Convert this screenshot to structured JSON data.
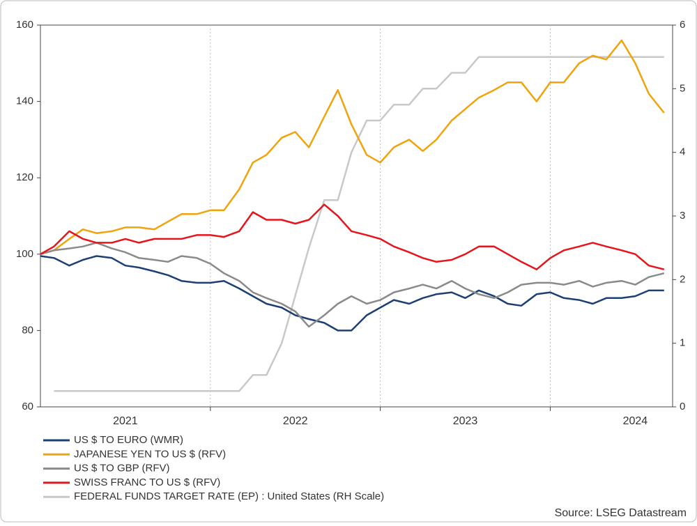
{
  "chart_data": {
    "type": "line",
    "x": [
      2021,
      2021.08,
      2021.17,
      2021.25,
      2021.33,
      2021.42,
      2021.5,
      2021.58,
      2021.67,
      2021.75,
      2021.83,
      2021.92,
      2022,
      2022.08,
      2022.17,
      2022.25,
      2022.33,
      2022.42,
      2022.5,
      2022.58,
      2022.67,
      2022.75,
      2022.83,
      2022.92,
      2023,
      2023.08,
      2023.17,
      2023.25,
      2023.33,
      2023.42,
      2023.5,
      2023.58,
      2023.67,
      2023.75,
      2023.83,
      2023.92,
      2024,
      2024.08,
      2024.17,
      2024.25,
      2024.33,
      2024.42,
      2024.5,
      2024.58,
      2024.67
    ],
    "xlim": [
      2021,
      2024.72
    ],
    "xticks": [
      2022,
      2023,
      2024
    ],
    "x_labels": [
      2021,
      2022,
      2023,
      2024
    ],
    "ylim": [
      60,
      160
    ],
    "yticks": [
      60,
      80,
      100,
      120,
      140,
      160
    ],
    "y2lim": [
      0,
      6
    ],
    "y2ticks": [
      0,
      1,
      2,
      3,
      4,
      5,
      6
    ],
    "grid": "x",
    "series": [
      {
        "name": "US $ TO EURO (WMR)",
        "color": "#1c3f74",
        "values": [
          99.5,
          99,
          97,
          98.5,
          99.5,
          99,
          97,
          96.5,
          95.5,
          94.5,
          93,
          92.5,
          92.5,
          93,
          91,
          89,
          87,
          86,
          84,
          83,
          82,
          80,
          80,
          84,
          86,
          88,
          87,
          88.5,
          89.5,
          90,
          88.5,
          90.5,
          89,
          87,
          86.5,
          89.5,
          90,
          88.5,
          88,
          87,
          88.5,
          88.5,
          89,
          90.5,
          90.5
        ]
      },
      {
        "name": "JAPANESE YEN TO US $ (RFV)",
        "color": "#f0a30a",
        "values": [
          100,
          101,
          104,
          106.5,
          105.5,
          106,
          107,
          107,
          106.5,
          108.5,
          110.5,
          110.5,
          111.5,
          111.5,
          117,
          124,
          126,
          130.5,
          132,
          128,
          136,
          143,
          134,
          126,
          124,
          128,
          130,
          127,
          130,
          135,
          138,
          141,
          143,
          145,
          145,
          140,
          145,
          145,
          150,
          152,
          151,
          156,
          150,
          142,
          137
        ]
      },
      {
        "name": "US $ TO GBP (RFV)",
        "color": "#8a8a8a",
        "values": [
          100,
          101,
          101.5,
          102,
          103,
          101.5,
          100.5,
          99,
          98.5,
          98,
          99.5,
          99,
          97.5,
          95,
          93,
          90,
          88.5,
          87,
          85,
          81,
          84,
          87,
          89,
          87,
          88,
          90,
          91,
          92,
          91,
          93,
          91,
          89.5,
          88.5,
          90,
          92,
          92.5,
          92.5,
          92,
          93,
          91.5,
          92.5,
          93,
          92,
          94,
          95
        ]
      },
      {
        "name": "SWISS FRANC TO US $ (RFV)",
        "color": "#e8141c",
        "values": [
          100,
          102,
          106,
          104,
          103,
          103,
          104,
          103,
          104,
          104,
          104,
          105,
          105,
          104.5,
          106,
          111,
          109,
          109,
          108,
          109,
          113,
          110,
          106,
          105,
          104,
          102,
          100.5,
          99,
          98,
          98.5,
          100,
          102,
          102,
          100,
          98,
          96,
          99,
          101,
          102,
          103,
          102,
          101,
          100,
          97,
          96
        ]
      },
      {
        "name": "FEDERAL FUNDS TARGET RATE (EP) : United States (RH Scale)",
        "color": "#c8c8c8",
        "axis": "y2",
        "values": [
          null,
          0.25,
          0.25,
          0.25,
          0.25,
          0.25,
          0.25,
          0.25,
          0.25,
          0.25,
          0.25,
          0.25,
          0.25,
          0.25,
          0.25,
          0.5,
          0.5,
          1.0,
          1.75,
          2.5,
          3.25,
          3.25,
          4.0,
          4.5,
          4.5,
          4.75,
          4.75,
          5.0,
          5.0,
          5.25,
          5.25,
          5.5,
          5.5,
          5.5,
          5.5,
          5.5,
          5.5,
          5.5,
          5.5,
          5.5,
          5.5,
          5.5,
          5.5,
          5.5,
          5.5
        ]
      }
    ],
    "source": "Source: LSEG Datastream"
  }
}
